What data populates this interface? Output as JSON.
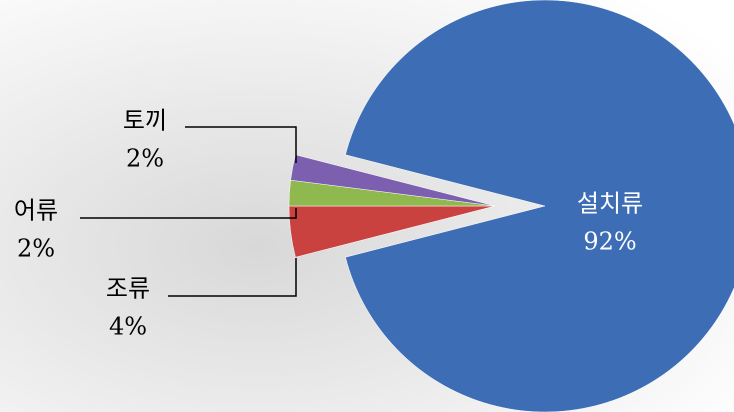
{
  "chart_data": {
    "type": "pie",
    "categories": [
      "설치류",
      "조류",
      "어류",
      "토끼"
    ],
    "values": [
      92,
      4,
      2,
      2
    ],
    "value_labels": [
      "92%",
      "4%",
      "2%",
      "2%"
    ],
    "colors": [
      "#3d6db5",
      "#c9423f",
      "#8fb84e",
      "#7d5fb0"
    ]
  }
}
